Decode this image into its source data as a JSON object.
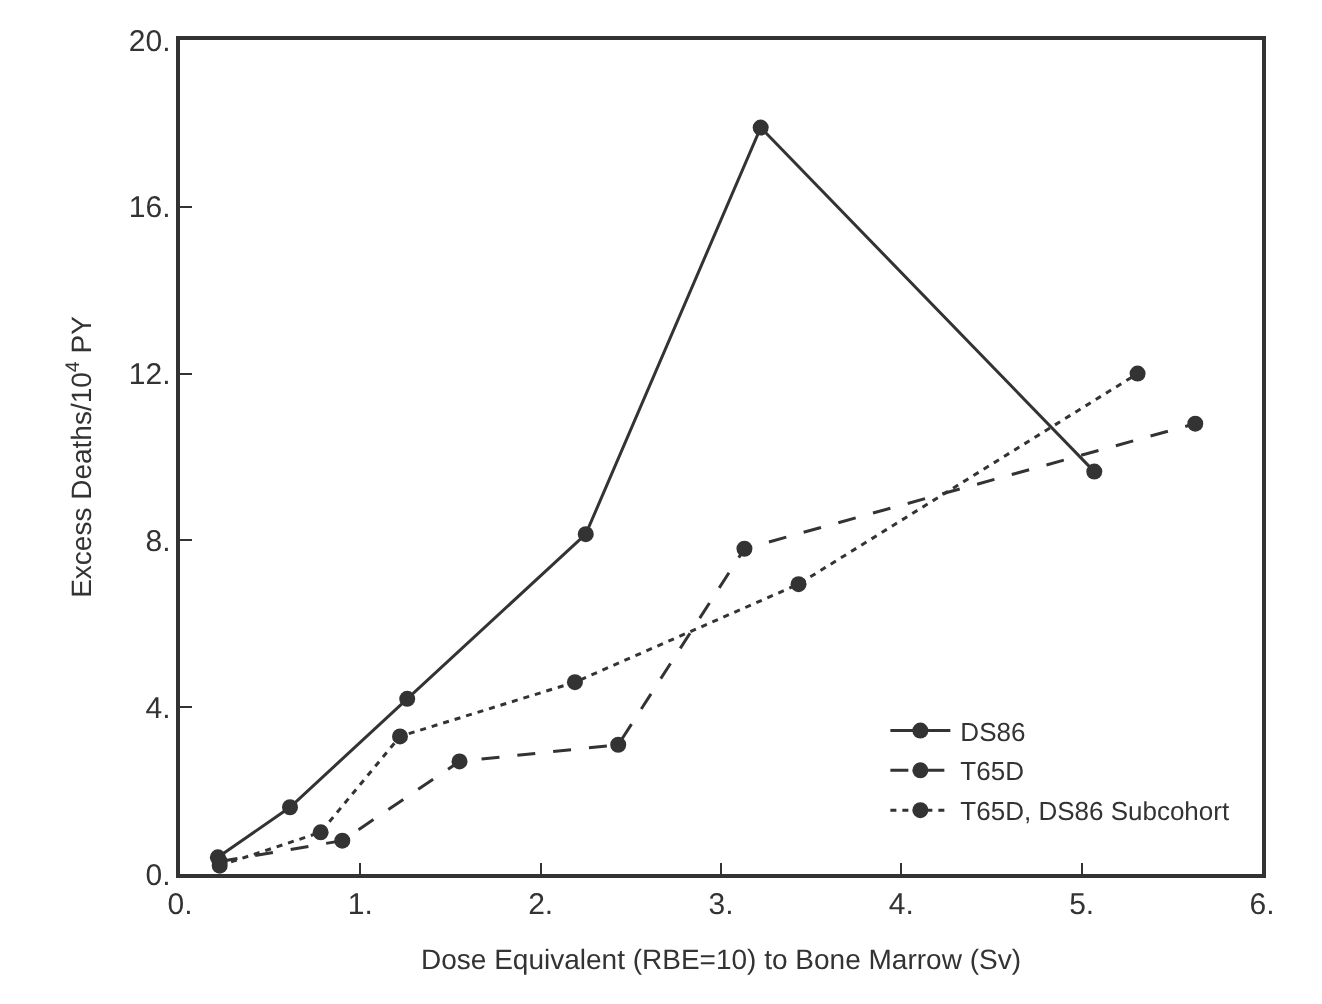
{
  "chart_data": {
    "type": "line",
    "xlabel": "Dose Equivalent (RBE=10) to Bone Marrow (Sv)",
    "ylabel": "Excess Deaths/10$^{4}$ PY",
    "xlim": [
      0,
      6
    ],
    "ylim": [
      0,
      20
    ],
    "xticks": [
      {
        "value": 0,
        "label": "0."
      },
      {
        "value": 1,
        "label": "1."
      },
      {
        "value": 2,
        "label": "2."
      },
      {
        "value": 3,
        "label": "3."
      },
      {
        "value": 4,
        "label": "4."
      },
      {
        "value": 5,
        "label": "5."
      },
      {
        "value": 6,
        "label": "6."
      }
    ],
    "yticks": [
      {
        "value": 0,
        "label": "0."
      },
      {
        "value": 4,
        "label": "4."
      },
      {
        "value": 8,
        "label": "8."
      },
      {
        "value": 12,
        "label": "12."
      },
      {
        "value": 16,
        "label": "16."
      },
      {
        "value": 20,
        "label": "20."
      }
    ],
    "legend": "bottom right",
    "marker": "circle",
    "series": [
      {
        "name": "DS86",
        "color": "#333333",
        "line_style": "solid",
        "x": [
          0.21,
          0.61,
          1.26,
          2.25,
          3.22,
          5.07
        ],
        "values": [
          0.4,
          1.6,
          4.2,
          8.15,
          17.9,
          9.65
        ]
      },
      {
        "name": "T65D",
        "color": "#333333",
        "line_style": "dashed",
        "x": [
          0.22,
          0.9,
          1.55,
          2.43,
          3.13,
          5.63
        ],
        "values": [
          0.3,
          0.8,
          2.7,
          3.1,
          7.8,
          10.8
        ]
      },
      {
        "name": "T65D, DS86 Subcohort",
        "color": "#333333",
        "line_style": "dotted",
        "x": [
          0.22,
          0.78,
          1.22,
          2.19,
          3.43,
          5.31
        ],
        "values": [
          0.2,
          1.0,
          3.3,
          4.6,
          6.95,
          12.0
        ]
      }
    ]
  }
}
